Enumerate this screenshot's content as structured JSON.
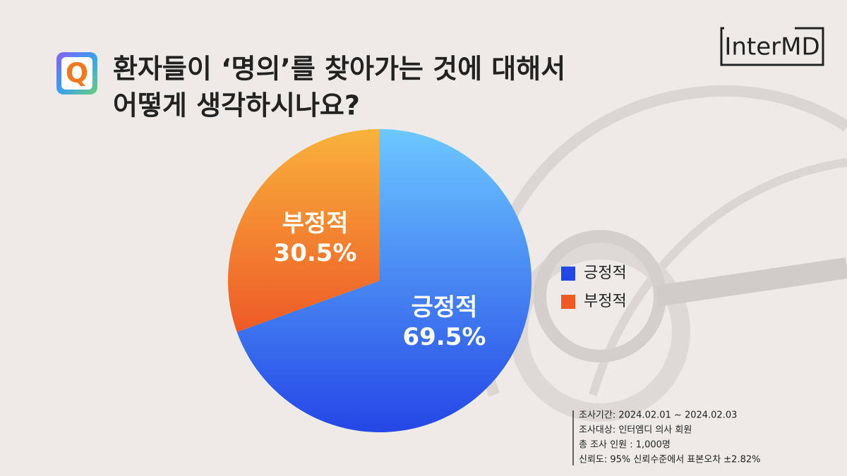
{
  "chart_data": {
    "type": "pie",
    "icon": "Q",
    "title": [
      "환자들이 ‘명의’를 찾아가는 것에 대해서",
      "어떻게 생각하시나요?"
    ],
    "logo": "InterMD",
    "categories": [
      "긍정적",
      "부정적"
    ],
    "values": [
      69.5,
      30.5
    ],
    "value_labels": [
      "69.5%",
      "30.5%"
    ],
    "colors": [
      "#2446e6",
      "#ee5a26"
    ],
    "legend": "right",
    "notes": [
      "조사기간: 2024.02.01 ~ 2024.02.03",
      "조사대상: 인터엠디 의사 회원",
      "총 조사 인원 : 1,000명",
      "신뢰도: 95% 신뢰수준에서 표본오차 ±2.82%"
    ]
  }
}
